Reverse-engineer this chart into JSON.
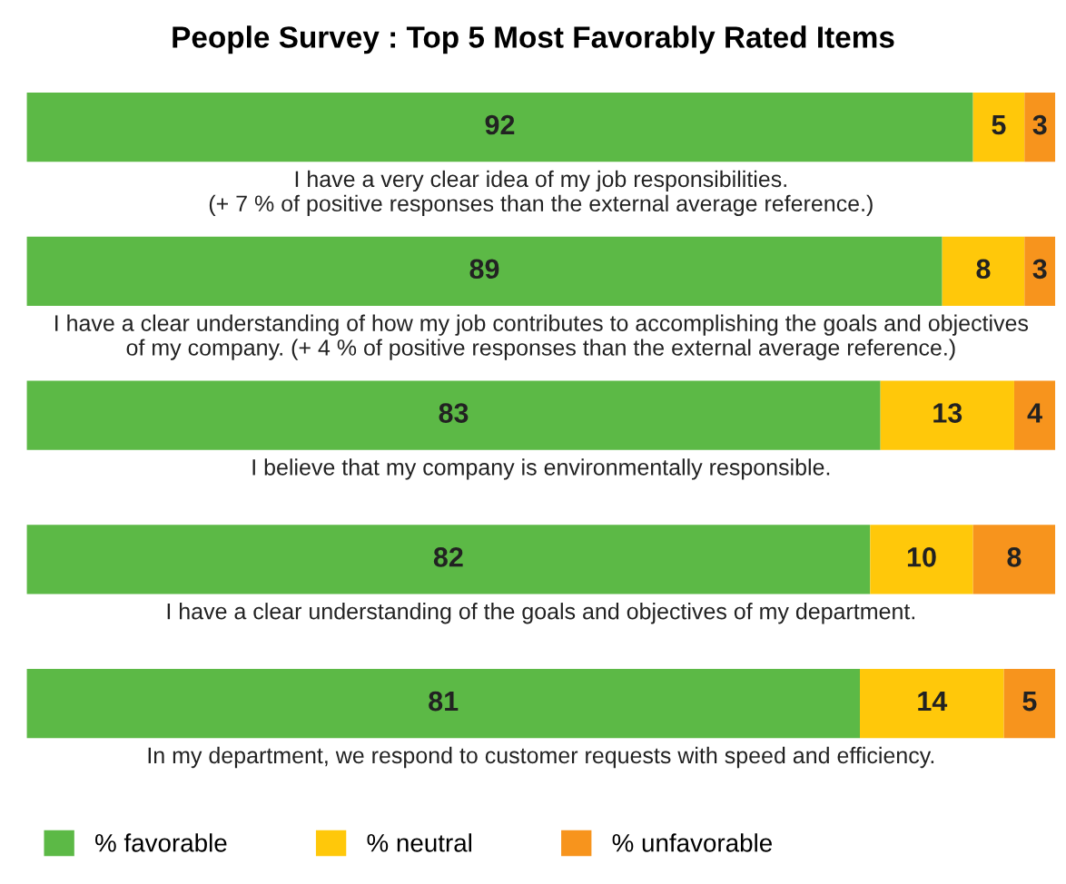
{
  "chart_data": {
    "type": "bar",
    "orientation": "horizontal",
    "stacked": true,
    "data_labels": true,
    "legend": "bottom left",
    "title": "People Survey : Top 5 Most Favorably Rated Items",
    "categories": [
      "I have a very clear idea of my job responsibilities.\n(+ 7 % of positive responses than the external average reference.)",
      "I have a clear understanding of how my job contributes to accomplishing the goals and objectives\nof my company. (+ 4 % of positive responses than the external average reference.)",
      "I believe that my company is environmentally responsible.",
      "I have a clear understanding of the goals and objectives of my department.",
      "In my department, we respond to customer requests with speed and efficiency."
    ],
    "series": [
      {
        "name": "% favorable",
        "color": "#5cb946",
        "values": [
          92,
          89,
          83,
          82,
          81
        ]
      },
      {
        "name": "% neutral",
        "color": "#ffc80a",
        "values": [
          5,
          8,
          13,
          10,
          14
        ]
      },
      {
        "name": "% unfavorable",
        "color": "#f7941d",
        "values": [
          3,
          3,
          4,
          8,
          5
        ]
      }
    ]
  }
}
